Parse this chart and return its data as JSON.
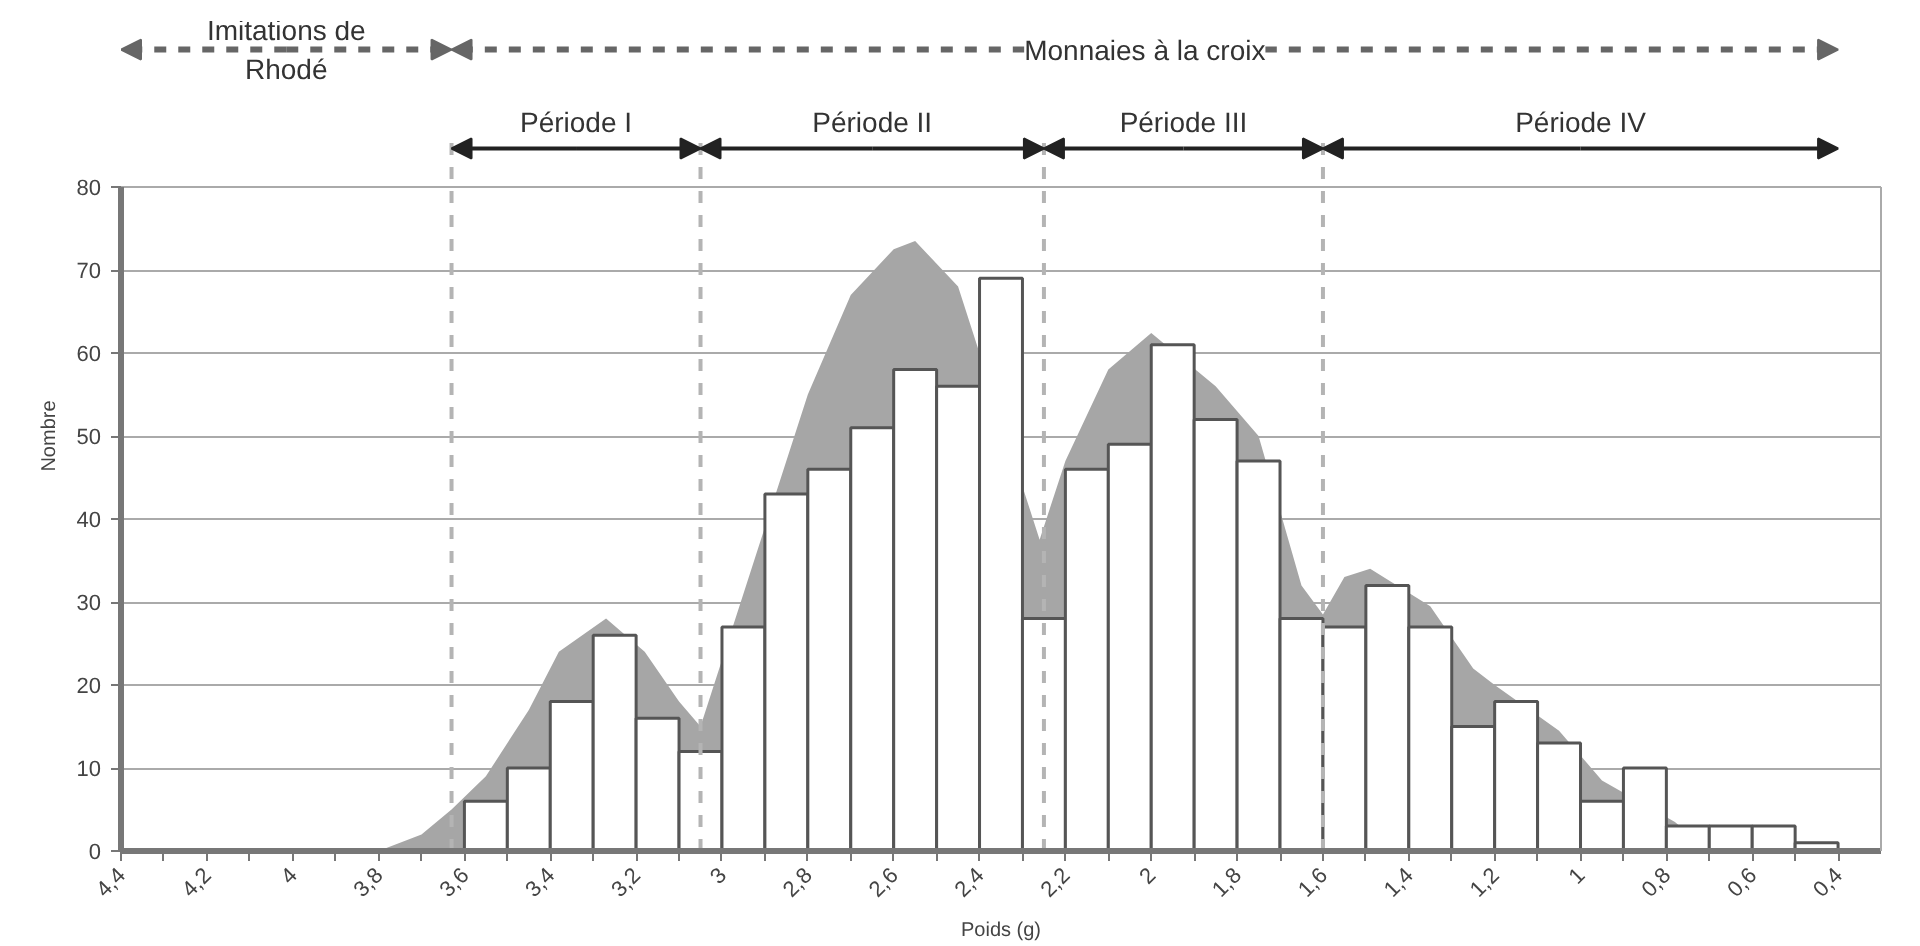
{
  "chart_data": {
    "type": "histogram",
    "xlabel": "Poids (g)",
    "ylabel": "Nombre",
    "xlim": [
      4.4,
      0.3
    ],
    "ylim": [
      0,
      80
    ],
    "xticks": [
      {
        "value": 4.4,
        "label": "4,4"
      },
      {
        "value": 4.3,
        "label": null
      },
      {
        "value": 4.2,
        "label": "4,2"
      },
      {
        "value": 4.1,
        "label": null
      },
      {
        "value": 4.0,
        "label": "4"
      },
      {
        "value": 3.9,
        "label": null
      },
      {
        "value": 3.8,
        "label": "3,8"
      },
      {
        "value": 3.7,
        "label": null
      },
      {
        "value": 3.6,
        "label": "3,6"
      },
      {
        "value": 3.5,
        "label": null
      },
      {
        "value": 3.4,
        "label": "3,4"
      },
      {
        "value": 3.3,
        "label": null
      },
      {
        "value": 3.2,
        "label": "3,2"
      },
      {
        "value": 3.1,
        "label": null
      },
      {
        "value": 3.0,
        "label": "3"
      },
      {
        "value": 2.9,
        "label": null
      },
      {
        "value": 2.8,
        "label": "2,8"
      },
      {
        "value": 2.7,
        "label": null
      },
      {
        "value": 2.6,
        "label": "2,6"
      },
      {
        "value": 2.5,
        "label": null
      },
      {
        "value": 2.4,
        "label": "2,4"
      },
      {
        "value": 2.3,
        "label": null
      },
      {
        "value": 2.2,
        "label": "2,2"
      },
      {
        "value": 2.1,
        "label": null
      },
      {
        "value": 2.0,
        "label": "2"
      },
      {
        "value": 1.9,
        "label": null
      },
      {
        "value": 1.8,
        "label": "1,8"
      },
      {
        "value": 1.7,
        "label": null
      },
      {
        "value": 1.6,
        "label": "1,6"
      },
      {
        "value": 1.5,
        "label": null
      },
      {
        "value": 1.4,
        "label": "1,4"
      },
      {
        "value": 1.3,
        "label": null
      },
      {
        "value": 1.2,
        "label": "1,2"
      },
      {
        "value": 1.1,
        "label": null
      },
      {
        "value": 1.0,
        "label": "1"
      },
      {
        "value": 0.9,
        "label": null
      },
      {
        "value": 0.8,
        "label": "0,8"
      },
      {
        "value": 0.7,
        "label": null
      },
      {
        "value": 0.6,
        "label": "0,6"
      },
      {
        "value": 0.5,
        "label": null
      },
      {
        "value": 0.4,
        "label": "0,4"
      }
    ],
    "yticks": [
      0,
      10,
      20,
      30,
      40,
      50,
      60,
      70,
      80
    ],
    "grid": "y",
    "series": [
      {
        "type": "area",
        "color": "#a6a6a6",
        "x": [
          3.8,
          3.7,
          3.63,
          3.55,
          3.45,
          3.38,
          3.27,
          3.18,
          3.1,
          3.05,
          2.95,
          2.8,
          2.7,
          2.6,
          2.55,
          2.45,
          2.26,
          2.2,
          2.1,
          2.0,
          1.85,
          1.75,
          1.65,
          1.6,
          1.55,
          1.49,
          1.35,
          1.25,
          1.2,
          1.05,
          0.95,
          0.78,
          0.7
        ],
        "values": [
          0,
          2,
          5,
          9,
          17,
          24,
          28,
          24,
          18,
          15,
          31,
          55,
          67,
          72.5,
          73.5,
          68,
          37.5,
          47,
          58,
          62.4,
          56,
          50,
          32,
          28.5,
          33,
          34,
          29.5,
          22,
          20,
          14.5,
          8.5,
          3.5,
          0
        ]
      },
      {
        "color": "#ffffff",
        "bins": [
          3.6,
          3.5,
          3.4,
          3.3,
          3.2,
          3.1,
          3.0,
          2.9,
          2.8,
          2.7,
          2.6,
          2.5,
          2.4,
          2.3,
          2.2,
          2.1,
          2.0,
          1.9,
          1.8,
          1.7,
          1.6,
          1.5,
          1.4,
          1.3,
          1.2,
          1.1,
          1.0,
          0.9,
          0.8,
          0.7,
          0.6,
          0.5,
          0.4
        ],
        "values": [
          6,
          10,
          18,
          26,
          16,
          12,
          27,
          43,
          46,
          51,
          58,
          56,
          69,
          28,
          46,
          49,
          61,
          52,
          47,
          28,
          27,
          32,
          27,
          15,
          18,
          13,
          6,
          10,
          3,
          3,
          3,
          1
        ]
      }
    ],
    "ref_lines": [
      {
        "axis": "x",
        "value": 3.63,
        "color": "#b4b4b4",
        "line_style": "dashed"
      },
      {
        "axis": "x",
        "value": 3.05,
        "color": "#b4b4b4",
        "line_style": "dashed"
      },
      {
        "axis": "x",
        "value": 2.25,
        "color": "#b4b4b4",
        "line_style": "dashed"
      },
      {
        "axis": "x",
        "value": 1.6,
        "color": "#b4b4b4",
        "line_style": "dashed"
      }
    ],
    "annotations": [
      "Imitations de\nRhodé",
      "Monnaies à la croix",
      "Période I",
      "Période II",
      "Période III",
      "Période IV"
    ]
  }
}
